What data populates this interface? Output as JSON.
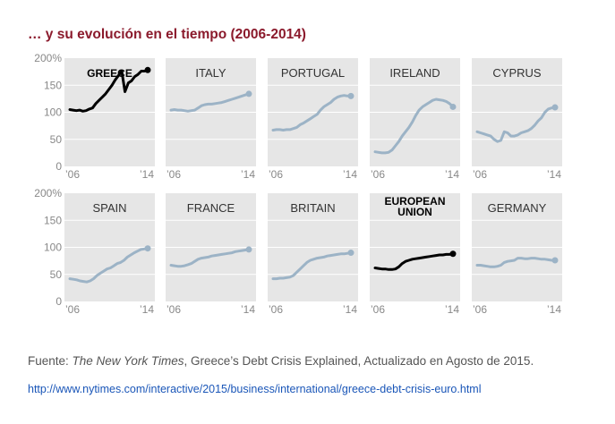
{
  "title": "… y su evolución en el tiempo (2006-2014)",
  "source": {
    "prefix": "Fuente: ",
    "publication": "The New York Times",
    "rest": ", Greece’s Debt Crisis Explained, Actualizado en Agosto de 2015."
  },
  "link": "http://www.nytimes.com/interactive/2015/business/international/greece-debt-crisis-euro.html",
  "colors": {
    "panel": "#e6e6e6",
    "grid": "#ffffff",
    "line": "#9cb3c6",
    "highlight": "#000000",
    "tick": "#888888"
  },
  "chart_data": {
    "type": "line",
    "layout": "small-multiples",
    "x_range": [
      2006,
      2014
    ],
    "ylim": [
      0,
      200
    ],
    "y_ticks": [
      "200%",
      "150",
      "100",
      "50",
      "0"
    ],
    "y_tick_values": [
      200,
      150,
      100,
      50,
      0
    ],
    "x_tick_labels": [
      "’06",
      "’14"
    ],
    "grid": true,
    "panels": [
      {
        "name": "GREECE",
        "highlight": true,
        "start": 2006,
        "end": 2014,
        "values": [
          105,
          104,
          103,
          104,
          102,
          103,
          106,
          108,
          116,
          122,
          128,
          134,
          142,
          150,
          160,
          168,
          176,
          138,
          154,
          158,
          166,
          170,
          176,
          176,
          178
        ]
      },
      {
        "name": "ITALY",
        "highlight": false,
        "start": 2006,
        "end": 2014,
        "values": [
          104,
          105,
          104,
          104,
          103,
          102,
          103,
          104,
          108,
          112,
          114,
          115,
          115,
          116,
          117,
          118,
          120,
          122,
          124,
          126,
          128,
          130,
          132,
          134
        ]
      },
      {
        "name": "PORTUGAL",
        "highlight": false,
        "start": 2006,
        "end": 2014,
        "values": [
          67,
          68,
          68,
          67,
          68,
          68,
          70,
          72,
          77,
          80,
          84,
          88,
          92,
          96,
          104,
          110,
          114,
          118,
          124,
          128,
          130,
          131,
          130,
          130
        ]
      },
      {
        "name": "IRELAND",
        "highlight": false,
        "start": 2006,
        "end": 2014,
        "values": [
          27,
          26,
          25,
          25,
          26,
          30,
          38,
          46,
          56,
          64,
          72,
          82,
          94,
          104,
          110,
          114,
          118,
          122,
          124,
          123,
          122,
          120,
          116,
          110
        ]
      },
      {
        "name": "CYPRUS",
        "highlight": false,
        "start": 2006,
        "end": 2014,
        "values": [
          64,
          62,
          60,
          58,
          56,
          50,
          46,
          48,
          64,
          62,
          56,
          56,
          58,
          62,
          64,
          66,
          70,
          76,
          84,
          90,
          100,
          106,
          108,
          109
        ]
      },
      {
        "name": "SPAIN",
        "highlight": false,
        "start": 2006,
        "end": 2014,
        "values": [
          42,
          41,
          40,
          38,
          37,
          36,
          38,
          42,
          48,
          52,
          56,
          60,
          62,
          66,
          70,
          72,
          76,
          82,
          86,
          90,
          93,
          96,
          97,
          98
        ]
      },
      {
        "name": "FRANCE",
        "highlight": false,
        "start": 2006,
        "end": 2014,
        "values": [
          67,
          66,
          65,
          65,
          66,
          68,
          70,
          74,
          78,
          80,
          81,
          82,
          84,
          85,
          86,
          87,
          88,
          89,
          90,
          92,
          93,
          94,
          95,
          96
        ]
      },
      {
        "name": "BRITAIN",
        "highlight": false,
        "start": 2006,
        "end": 2014,
        "values": [
          42,
          42,
          43,
          43,
          44,
          45,
          48,
          54,
          60,
          66,
          72,
          76,
          78,
          80,
          81,
          82,
          84,
          85,
          86,
          87,
          88,
          88,
          89,
          90
        ]
      },
      {
        "name": "EUROPEAN UNION",
        "name_lines": [
          "EUROPEAN",
          "UNION"
        ],
        "highlight": true,
        "start": 2006,
        "end": 2014,
        "values": [
          62,
          61,
          60,
          60,
          59,
          59,
          60,
          64,
          70,
          74,
          76,
          78,
          79,
          80,
          81,
          82,
          83,
          84,
          85,
          86,
          86,
          87,
          87,
          88
        ]
      },
      {
        "name": "GERMANY",
        "highlight": false,
        "start": 2006,
        "end": 2014,
        "values": [
          67,
          67,
          66,
          65,
          64,
          64,
          65,
          67,
          72,
          74,
          75,
          76,
          80,
          80,
          79,
          79,
          80,
          80,
          79,
          78,
          78,
          77,
          76,
          76
        ]
      }
    ]
  }
}
